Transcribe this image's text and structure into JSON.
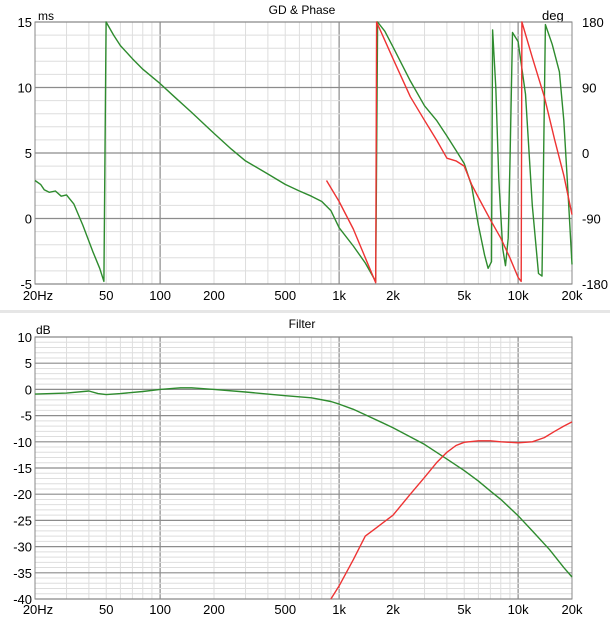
{
  "chart_data": [
    {
      "type": "line",
      "title": "GD & Phase",
      "ylabel_left": "ms",
      "ylabel_right": "deg",
      "xscale": "log",
      "xlim": [
        20,
        20000
      ],
      "ylim_left": [
        -5,
        15
      ],
      "ylim_right": [
        -180,
        180
      ],
      "x_ticks": [
        {
          "v": 20,
          "label": "20Hz"
        },
        {
          "v": 50,
          "label": "50"
        },
        {
          "v": 100,
          "label": "100"
        },
        {
          "v": 200,
          "label": "200"
        },
        {
          "v": 500,
          "label": "500"
        },
        {
          "v": 1000,
          "label": "1k"
        },
        {
          "v": 2000,
          "label": "2k"
        },
        {
          "v": 5000,
          "label": "5k"
        },
        {
          "v": 10000,
          "label": "10k"
        },
        {
          "v": 20000,
          "label": "20k"
        }
      ],
      "y_ticks_left": [
        {
          "v": 15,
          "label": "15"
        },
        {
          "v": 10,
          "label": "10"
        },
        {
          "v": 5,
          "label": "5"
        },
        {
          "v": 0,
          "label": "0"
        },
        {
          "v": -5,
          "label": "-5"
        }
      ],
      "y_ticks_right": [
        {
          "v": 180,
          "label": "180"
        },
        {
          "v": 90,
          "label": "90"
        },
        {
          "v": 0,
          "label": "0"
        },
        {
          "v": -90,
          "label": "-90"
        },
        {
          "v": -180,
          "label": "-180"
        }
      ],
      "grid": true,
      "series": [
        {
          "name": "green",
          "color": "#2e8b2e",
          "points": [
            [
              20,
              2.9
            ],
            [
              21.5,
              2.6
            ],
            [
              22.5,
              2.2
            ],
            [
              24,
              2.0
            ],
            [
              26,
              2.1
            ],
            [
              28,
              1.7
            ],
            [
              30,
              1.8
            ],
            [
              33,
              1.1
            ],
            [
              37,
              -0.5
            ],
            [
              42,
              -2.5
            ],
            [
              46,
              -3.8
            ],
            [
              48.5,
              -4.8
            ],
            [
              49.9,
              15
            ],
            [
              55,
              14
            ],
            [
              60,
              13.2
            ],
            [
              70,
              12.2
            ],
            [
              80,
              11.4
            ],
            [
              100,
              10.3
            ],
            [
              120,
              9.3
            ],
            [
              150,
              8.1
            ],
            [
              200,
              6.5
            ],
            [
              250,
              5.3
            ],
            [
              300,
              4.4
            ],
            [
              400,
              3.4
            ],
            [
              500,
              2.6
            ],
            [
              600,
              2.1
            ],
            [
              700,
              1.7
            ],
            [
              800,
              1.3
            ],
            [
              900,
              0.6
            ],
            [
              1000,
              -0.7
            ],
            [
              1200,
              -2.1
            ],
            [
              1400,
              -3.4
            ],
            [
              1600,
              -4.8
            ],
            [
              1640,
              15
            ],
            [
              1800,
              14.3
            ],
            [
              2000,
              13.1
            ],
            [
              2500,
              10.5
            ],
            [
              3000,
              8.6
            ],
            [
              3500,
              7.5
            ],
            [
              4000,
              6.3
            ],
            [
              4500,
              5.2
            ],
            [
              5000,
              4.2
            ],
            [
              5500,
              2.5
            ],
            [
              6000,
              -0.5
            ],
            [
              6500,
              -2.8
            ],
            [
              6800,
              -3.8
            ],
            [
              7100,
              -3.3
            ],
            [
              7200,
              14.4
            ],
            [
              7500,
              10
            ],
            [
              7800,
              3
            ],
            [
              8200,
              -2.3
            ],
            [
              8500,
              -3.6
            ],
            [
              8800,
              -1.5
            ],
            [
              9000,
              4
            ],
            [
              9300,
              14.2
            ],
            [
              10000,
              13.5
            ],
            [
              11000,
              9.5
            ],
            [
              12000,
              1
            ],
            [
              13000,
              -4.2
            ],
            [
              13600,
              -4.4
            ],
            [
              14200,
              14.8
            ],
            [
              15500,
              13.3
            ],
            [
              17000,
              11.2
            ],
            [
              18000,
              7.5
            ],
            [
              19000,
              2
            ],
            [
              20000,
              -3.5
            ]
          ]
        },
        {
          "name": "red",
          "color": "#ee3333",
          "points": [
            [
              850,
              2.9
            ],
            [
              1000,
              1.3
            ],
            [
              1200,
              -0.8
            ],
            [
              1400,
              -3.0
            ],
            [
              1600,
              -4.9
            ],
            [
              1620,
              15
            ],
            [
              1800,
              13.6
            ],
            [
              2000,
              12.2
            ],
            [
              2500,
              9.3
            ],
            [
              3000,
              7.5
            ],
            [
              3500,
              6.0
            ],
            [
              4000,
              4.6
            ],
            [
              4500,
              4.4
            ],
            [
              5000,
              4.0
            ],
            [
              5500,
              2.6
            ],
            [
              6000,
              1.6
            ],
            [
              7000,
              -0.1
            ],
            [
              8000,
              -1.5
            ],
            [
              9000,
              -3.0
            ],
            [
              10000,
              -4.5
            ],
            [
              10400,
              -4.8
            ],
            [
              10500,
              15
            ],
            [
              12000,
              12.3
            ],
            [
              14000,
              9.3
            ],
            [
              16000,
              6.0
            ],
            [
              18000,
              3.3
            ],
            [
              20000,
              0.3
            ]
          ]
        }
      ]
    },
    {
      "type": "line",
      "title": "Filter",
      "ylabel": "dB",
      "xscale": "log",
      "xlim": [
        20,
        20000
      ],
      "ylim": [
        -40,
        10
      ],
      "x_ticks": [
        {
          "v": 20,
          "label": "20Hz"
        },
        {
          "v": 50,
          "label": "50"
        },
        {
          "v": 100,
          "label": "100"
        },
        {
          "v": 200,
          "label": "200"
        },
        {
          "v": 500,
          "label": "500"
        },
        {
          "v": 1000,
          "label": "1k"
        },
        {
          "v": 2000,
          "label": "2k"
        },
        {
          "v": 5000,
          "label": "5k"
        },
        {
          "v": 10000,
          "label": "10k"
        },
        {
          "v": 20000,
          "label": "20k"
        }
      ],
      "y_ticks": [
        {
          "v": 10,
          "label": "10"
        },
        {
          "v": 5,
          "label": "5"
        },
        {
          "v": 0,
          "label": "0"
        },
        {
          "v": -5,
          "label": "-5"
        },
        {
          "v": -10,
          "label": "-10"
        },
        {
          "v": -15,
          "label": "-15"
        },
        {
          "v": -20,
          "label": "-20"
        },
        {
          "v": -25,
          "label": "-25"
        },
        {
          "v": -30,
          "label": "-30"
        },
        {
          "v": -35,
          "label": "-35"
        },
        {
          "v": -40,
          "label": "-40"
        }
      ],
      "grid": true,
      "series": [
        {
          "name": "green",
          "color": "#2e8b2e",
          "points": [
            [
              20,
              -0.9
            ],
            [
              30,
              -0.7
            ],
            [
              40,
              -0.3
            ],
            [
              45,
              -0.8
            ],
            [
              50,
              -1.0
            ],
            [
              60,
              -0.8
            ],
            [
              80,
              -0.4
            ],
            [
              100,
              0.0
            ],
            [
              130,
              0.3
            ],
            [
              150,
              0.3
            ],
            [
              200,
              0.0
            ],
            [
              300,
              -0.5
            ],
            [
              500,
              -1.2
            ],
            [
              700,
              -1.6
            ],
            [
              900,
              -2.3
            ],
            [
              1000,
              -2.8
            ],
            [
              1200,
              -3.8
            ],
            [
              1500,
              -5.3
            ],
            [
              2000,
              -7.3
            ],
            [
              3000,
              -10.5
            ],
            [
              4000,
              -13.3
            ],
            [
              5000,
              -15.5
            ],
            [
              6000,
              -17.5
            ],
            [
              7000,
              -19.4
            ],
            [
              8000,
              -21.0
            ],
            [
              10000,
              -24.1
            ],
            [
              12000,
              -27.0
            ],
            [
              15000,
              -30.6
            ],
            [
              18000,
              -34.0
            ],
            [
              20000,
              -35.8
            ]
          ]
        },
        {
          "name": "red",
          "color": "#ee3333",
          "points": [
            [
              900,
              -40
            ],
            [
              1000,
              -37.5
            ],
            [
              1200,
              -32.5
            ],
            [
              1400,
              -28.0
            ],
            [
              1600,
              -26.5
            ],
            [
              2000,
              -24.0
            ],
            [
              2500,
              -20.0
            ],
            [
              3000,
              -16.8
            ],
            [
              3500,
              -14.0
            ],
            [
              4000,
              -12.0
            ],
            [
              4500,
              -10.7
            ],
            [
              5000,
              -10.1
            ],
            [
              6000,
              -9.8
            ],
            [
              7000,
              -9.8
            ],
            [
              8000,
              -10.0
            ],
            [
              10000,
              -10.2
            ],
            [
              12000,
              -10.0
            ],
            [
              14000,
              -9.2
            ],
            [
              16000,
              -8.0
            ],
            [
              18000,
              -7.0
            ],
            [
              20000,
              -6.2
            ]
          ]
        }
      ]
    }
  ]
}
